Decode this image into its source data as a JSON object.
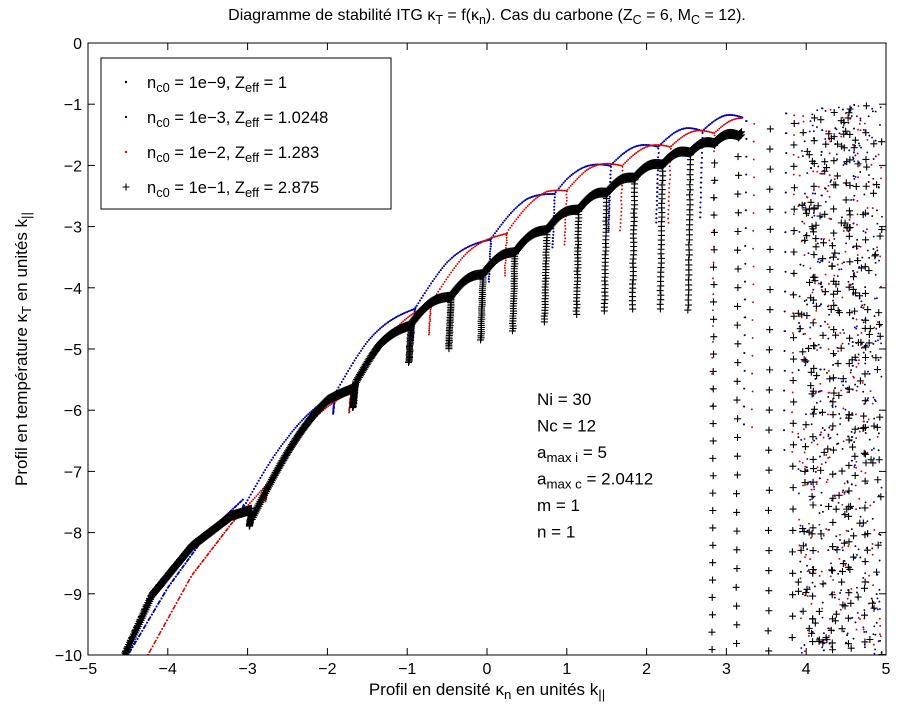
{
  "chart_data": {
    "type": "scatter",
    "title": "Diagramme de stabilité ITG κ_T = f(κ_n). Cas du carbone (Z_C = 6, M_C = 12).",
    "title_rich": [
      {
        "t": "Diagramme de stabilité ITG κ"
      },
      {
        "t": "T",
        "sub": true
      },
      {
        "t": " = f(κ"
      },
      {
        "t": "n",
        "sub": true
      },
      {
        "t": "). Cas du carbone (Z"
      },
      {
        "t": "C",
        "sub": true
      },
      {
        "t": " = 6, M"
      },
      {
        "t": "C",
        "sub": true
      },
      {
        "t": " = 12)."
      }
    ],
    "xlabel": "Profil en densité κn en unités k||",
    "xlabel_rich": [
      {
        "t": "Profil en densité κ"
      },
      {
        "t": "n",
        "sub": true
      },
      {
        "t": " en unités k"
      },
      {
        "t": "||",
        "sub": true
      }
    ],
    "ylabel": "Profil en température κT en unités k||",
    "ylabel_rich": [
      {
        "t": "Profil en température κ"
      },
      {
        "t": "T",
        "sub": true
      },
      {
        "t": " en unités k"
      },
      {
        "t": "||",
        "sub": true
      }
    ],
    "xlim": [
      -5,
      5
    ],
    "ylim": [
      -10,
      0
    ],
    "xticks": [
      -5,
      -4,
      -3,
      -2,
      -1,
      0,
      1,
      2,
      3,
      4,
      5
    ],
    "yticks": [
      0,
      -1,
      -2,
      -3,
      -4,
      -5,
      -6,
      -7,
      -8,
      -9,
      -10
    ],
    "grid": false,
    "legend_position": "top-left",
    "series": [
      {
        "name": "n_c0 = 1e-9, Z_eff = 1",
        "name_rich": [
          {
            "t": "n"
          },
          {
            "t": "c0",
            "sub": true
          },
          {
            "t": " = 1e−9, Z"
          },
          {
            "t": "eff",
            "sub": true
          },
          {
            "t": " = 1"
          }
        ],
        "color": "#000000",
        "marker": "dot",
        "z": 1,
        "envelope": [
          [
            -4.5,
            -10
          ],
          [
            -4.0,
            -8.9
          ],
          [
            -3.5,
            -8.0
          ],
          [
            -3.05,
            -7.45
          ],
          [
            -2.5,
            -6.6
          ],
          [
            -2.0,
            -5.75
          ],
          [
            -1.5,
            -5.0
          ],
          [
            -1.0,
            -4.35
          ],
          [
            -0.5,
            -3.7
          ],
          [
            0.0,
            -3.15
          ],
          [
            0.5,
            -2.65
          ],
          [
            1.0,
            -2.25
          ],
          [
            1.5,
            -1.95
          ],
          [
            2.0,
            -1.7
          ],
          [
            2.5,
            -1.45
          ],
          [
            3.0,
            -1.25
          ],
          [
            3.5,
            -1.1
          ],
          [
            4.0,
            -1.0
          ],
          [
            4.5,
            -0.92
          ],
          [
            4.95,
            -0.88
          ]
        ],
        "cusps": [
          -3.05,
          -1.9,
          -0.9,
          0.05,
          0.85,
          1.55,
          2.15,
          2.7,
          3.25,
          3.75,
          4.2,
          4.6
        ],
        "wedge_count": 30
      },
      {
        "name": "n_c0 = 1e-3, Z_eff = 1.0248",
        "name_rich": [
          {
            "t": "n"
          },
          {
            "t": "c0",
            "sub": true
          },
          {
            "t": " = 1e−3, Z"
          },
          {
            "t": "eff",
            "sub": true
          },
          {
            "t": " = 1.0248"
          }
        ],
        "color": "#0000cc",
        "marker": "dot",
        "z": 2,
        "envelope": [
          [
            -4.5,
            -10
          ],
          [
            -4.0,
            -8.9
          ],
          [
            -3.5,
            -8.0
          ],
          [
            -3.05,
            -7.45
          ],
          [
            -2.5,
            -6.6
          ],
          [
            -2.0,
            -5.75
          ],
          [
            -1.5,
            -5.0
          ],
          [
            -1.0,
            -4.35
          ],
          [
            -0.5,
            -3.7
          ],
          [
            0.0,
            -3.15
          ],
          [
            0.5,
            -2.65
          ],
          [
            1.0,
            -2.25
          ],
          [
            1.5,
            -1.95
          ],
          [
            2.0,
            -1.7
          ],
          [
            2.5,
            -1.45
          ],
          [
            3.0,
            -1.25
          ],
          [
            3.5,
            -1.1
          ],
          [
            4.0,
            -1.0
          ],
          [
            4.5,
            -0.92
          ],
          [
            4.95,
            -0.88
          ]
        ],
        "cusps": [
          -3.05,
          -1.9,
          -0.9,
          0.05,
          0.85,
          1.55,
          2.15,
          2.7,
          3.25,
          3.75,
          4.2,
          4.6
        ],
        "wedge_count": 30
      },
      {
        "name": "n_c0 = 1e-2, Z_eff = 1.283",
        "name_rich": [
          {
            "t": "n"
          },
          {
            "t": "c0",
            "sub": true
          },
          {
            "t": " = 1e−2, Z"
          },
          {
            "t": "eff",
            "sub": true
          },
          {
            "t": " = 1.283"
          }
        ],
        "color": "#dd0000",
        "marker": "dot",
        "z": 3,
        "envelope": [
          [
            -4.25,
            -10
          ],
          [
            -3.7,
            -8.7
          ],
          [
            -3.2,
            -7.85
          ],
          [
            -2.75,
            -7.2
          ],
          [
            -2.25,
            -6.4
          ],
          [
            -1.75,
            -5.65
          ],
          [
            -1.25,
            -4.95
          ],
          [
            -0.75,
            -4.2
          ],
          [
            -0.25,
            -3.55
          ],
          [
            0.25,
            -3.0
          ],
          [
            0.75,
            -2.5
          ],
          [
            1.25,
            -2.15
          ],
          [
            1.75,
            -1.9
          ],
          [
            2.25,
            -1.65
          ],
          [
            2.75,
            -1.45
          ],
          [
            3.25,
            -1.25
          ],
          [
            3.75,
            -1.1
          ],
          [
            4.25,
            -1.0
          ],
          [
            4.65,
            -0.93
          ],
          [
            4.95,
            -0.9
          ]
        ],
        "cusps": [
          -2.75,
          -1.7,
          -0.7,
          0.25,
          1.0,
          1.7,
          2.3,
          2.85,
          3.35,
          3.85,
          4.3,
          4.65
        ],
        "wedge_count": 30
      },
      {
        "name": "n_c0 = 1e-1, Z_eff = 2.875",
        "name_rich": [
          {
            "t": "n"
          },
          {
            "t": "c0",
            "sub": true
          },
          {
            "t": " = 1e−1, Z"
          },
          {
            "t": "eff",
            "sub": true
          },
          {
            "t": " = 2.875"
          }
        ],
        "color": "#000000",
        "marker": "plus",
        "z": 4,
        "envelope": [
          [
            -4.55,
            -10
          ],
          [
            -4.2,
            -9.0
          ],
          [
            -3.7,
            -8.2
          ],
          [
            -3.2,
            -7.7
          ],
          [
            -2.95,
            -7.6
          ],
          [
            -2.5,
            -6.8
          ],
          [
            -2.0,
            -5.9
          ],
          [
            -1.65,
            -5.45
          ],
          [
            -1.35,
            -5.0
          ],
          [
            -0.95,
            -4.5
          ],
          [
            -0.55,
            -4.15
          ],
          [
            -0.1,
            -3.75
          ],
          [
            0.4,
            -3.3
          ],
          [
            0.9,
            -2.85
          ],
          [
            1.4,
            -2.45
          ],
          [
            1.9,
            -2.1
          ],
          [
            2.4,
            -1.8
          ],
          [
            2.9,
            -1.55
          ],
          [
            3.4,
            -1.35
          ],
          [
            3.9,
            -1.2
          ],
          [
            4.3,
            -1.05
          ],
          [
            4.65,
            -0.95
          ],
          [
            4.95,
            -0.88
          ]
        ],
        "cusps": [
          -2.95,
          -1.65,
          -0.95,
          -0.45,
          -0.05,
          0.35,
          0.75,
          1.15,
          1.5,
          1.85,
          2.2,
          2.55,
          2.85,
          3.15,
          3.55,
          3.85,
          4.1,
          4.35,
          4.55,
          4.75
        ],
        "wedge_count": 30
      }
    ],
    "annotations": [
      {
        "text": "Ni = 30",
        "rich": [
          {
            "t": "Ni = 30"
          }
        ]
      },
      {
        "text": "Nc = 12",
        "rich": [
          {
            "t": "Nc = 12"
          }
        ]
      },
      {
        "text": "a_max i = 5",
        "rich": [
          {
            "t": "a"
          },
          {
            "t": "max i",
            "sub": true
          },
          {
            "t": " = 5"
          }
        ]
      },
      {
        "text": "a_max c = 2.0412",
        "rich": [
          {
            "t": "a"
          },
          {
            "t": "max c",
            "sub": true
          },
          {
            "t": " = 2.0412"
          }
        ]
      },
      {
        "text": "m = 1",
        "rich": [
          {
            "t": "m = 1"
          }
        ]
      },
      {
        "text": "n = 1",
        "rich": [
          {
            "t": "n = 1"
          }
        ]
      }
    ]
  }
}
